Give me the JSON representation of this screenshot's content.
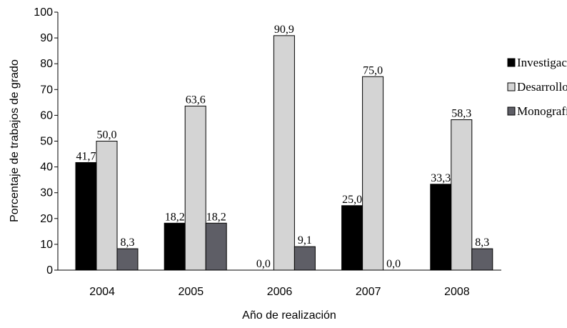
{
  "chart_data": {
    "type": "bar",
    "title": "",
    "xlabel": "Año de realización",
    "ylabel": "Porcentaje  de trabajos de grado",
    "categories": [
      "2004",
      "2005",
      "2006",
      "2007",
      "2008"
    ],
    "ylim": [
      0,
      100
    ],
    "yticks": [
      "0",
      "10",
      "20",
      "30",
      "40",
      "50",
      "60",
      "70",
      "80",
      "90",
      "100"
    ],
    "grid": false,
    "legend_position": "right",
    "series": [
      {
        "name": "Investigación",
        "color": "#000000",
        "values": [
          41.7,
          18.2,
          0.0,
          25.0,
          33.3
        ],
        "labels": [
          "41,7",
          "18,2",
          "0,0",
          "25,0",
          "33,3"
        ]
      },
      {
        "name": "Desarrollo",
        "color": "#d4d4d4",
        "values": [
          50.0,
          63.6,
          90.9,
          75.0,
          58.3
        ],
        "labels": [
          "50,0",
          "63,6",
          "90,9",
          "75,0",
          "58,3"
        ]
      },
      {
        "name": "Monografía",
        "color": "#5e5e66",
        "values": [
          8.3,
          18.2,
          9.1,
          0.0,
          8.3
        ],
        "labels": [
          "8,3",
          "18,2",
          "9,1",
          "0,0",
          "8,3"
        ]
      }
    ]
  }
}
